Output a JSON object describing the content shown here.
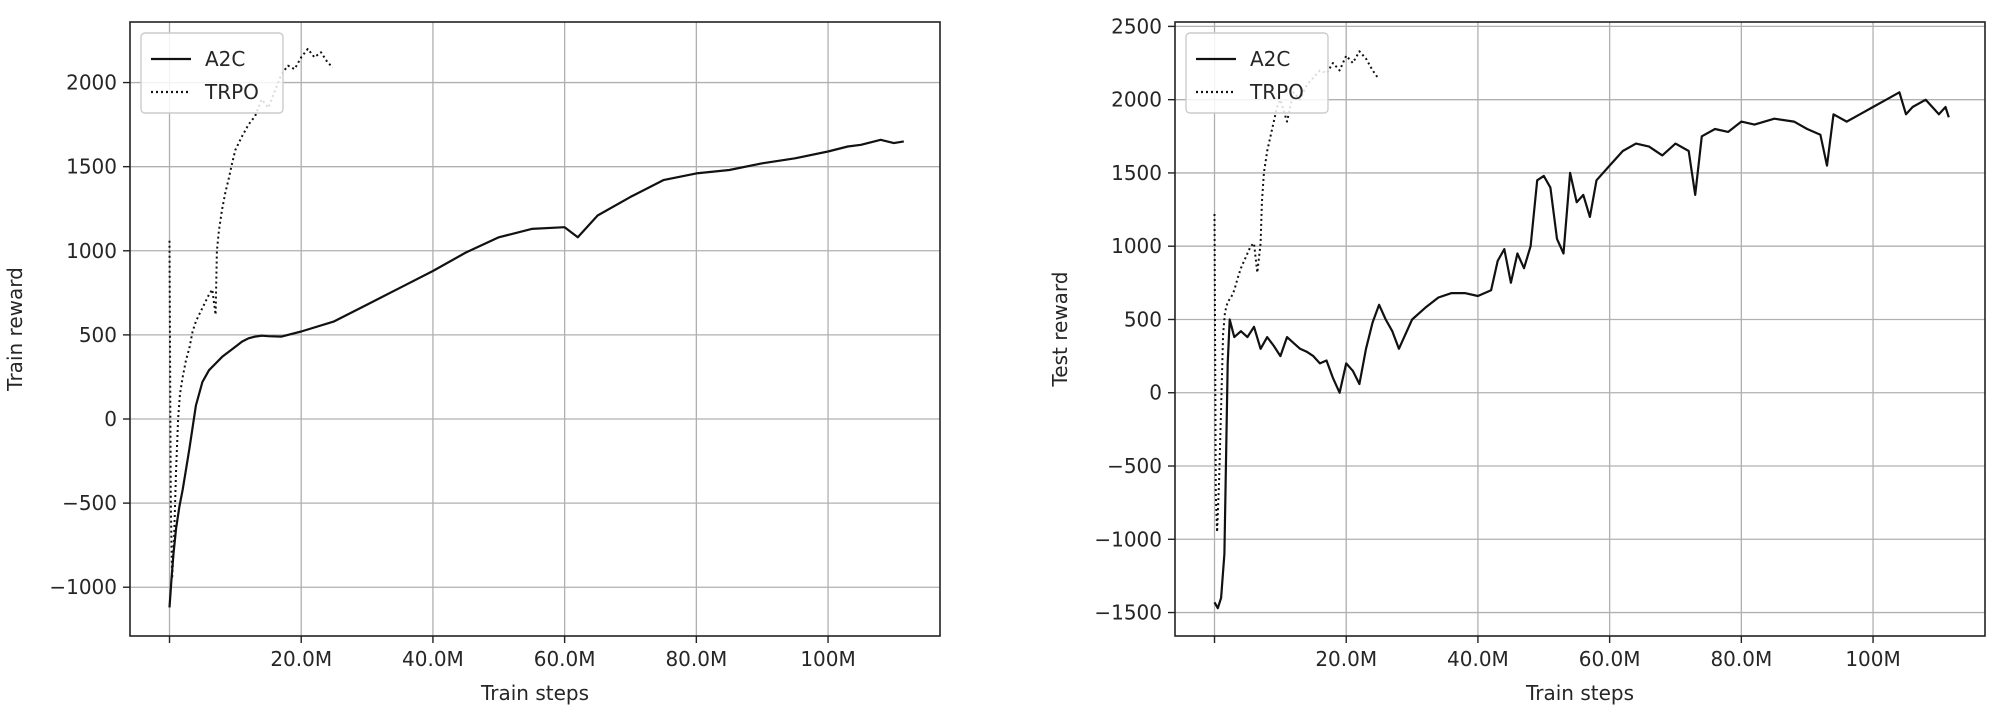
{
  "colors": {
    "line": "#111111",
    "grid": "#b0b0b0",
    "frame": "#222222",
    "legend_border": "#cccccc"
  },
  "chart_data": [
    {
      "type": "line",
      "xlabel": "Train steps",
      "ylabel": "Train reward",
      "xlim": [
        -6000000,
        117000000
      ],
      "ylim": [
        -1290,
        2360
      ],
      "xticks": [
        0,
        20000000,
        40000000,
        60000000,
        80000000,
        100000000
      ],
      "xtick_labels": [
        "",
        "20.0M",
        "40.0M",
        "60.0M",
        "80.0M",
        "100M"
      ],
      "yticks": [
        -1000,
        -500,
        0,
        500,
        1000,
        1500,
        2000
      ],
      "ytick_labels": [
        "−1000",
        "−500",
        "0",
        "500",
        "1000",
        "1500",
        "2000"
      ],
      "grid": true,
      "legend_position": "top-left",
      "series": [
        {
          "name": "A2C",
          "style": "solid",
          "x": [
            0,
            0.3,
            0.6,
            1.0,
            1.5,
            2.0,
            2.5,
            3.0,
            3.5,
            4.0,
            5.0,
            6.0,
            7.0,
            8.0,
            9.0,
            10.0,
            11.0,
            12.0,
            13.0,
            14.0,
            15.0,
            17.0,
            20.0,
            25.0,
            30.0,
            35.0,
            40.0,
            45.0,
            50.0,
            55.0,
            60.0,
            62.0,
            65.0,
            70.0,
            75.0,
            80.0,
            85.0,
            90.0,
            95.0,
            100.0,
            103.0,
            105.0,
            108.0,
            110.0,
            111.5
          ],
          "y": [
            -1120,
            -950,
            -800,
            -650,
            -520,
            -420,
            -300,
            -180,
            -50,
            80,
            220,
            290,
            330,
            370,
            400,
            430,
            460,
            480,
            490,
            495,
            492,
            490,
            520,
            580,
            680,
            780,
            880,
            990,
            1080,
            1130,
            1140,
            1080,
            1210,
            1320,
            1420,
            1460,
            1480,
            1520,
            1550,
            1590,
            1620,
            1630,
            1660,
            1640,
            1650
          ],
          "x_unit_scale": 1000000
        },
        {
          "name": "TRPO",
          "style": "dotted",
          "x": [
            0,
            0.2,
            0.4,
            0.7,
            1.0,
            1.3,
            1.6,
            2.0,
            2.5,
            3.0,
            3.5,
            4.0,
            4.5,
            5.0,
            5.5,
            6.0,
            6.5,
            7.0,
            7.2,
            7.5,
            8.0,
            8.5,
            9.0,
            9.5,
            10.0,
            11.0,
            12.0,
            13.0,
            14.0,
            15.0,
            16.0,
            17.0,
            18.0,
            19.0,
            20.0,
            21.0,
            22.0,
            23.0,
            24.0,
            24.8
          ],
          "y": [
            1060,
            -500,
            -950,
            -700,
            -300,
            0,
            150,
            250,
            350,
            420,
            520,
            580,
            620,
            660,
            700,
            740,
            770,
            620,
            1000,
            1120,
            1250,
            1350,
            1430,
            1520,
            1600,
            1680,
            1750,
            1800,
            1900,
            1850,
            1950,
            2050,
            2100,
            2080,
            2150,
            2200,
            2150,
            2180,
            2120,
            2090
          ],
          "x_unit_scale": 1000000
        }
      ]
    },
    {
      "type": "line",
      "xlabel": "Train steps",
      "ylabel": "Test reward",
      "xlim": [
        -6000000,
        117000000
      ],
      "ylim": [
        -1660,
        2530
      ],
      "xticks": [
        0,
        20000000,
        40000000,
        60000000,
        80000000,
        100000000
      ],
      "xtick_labels": [
        "",
        "20.0M",
        "40.0M",
        "60.0M",
        "80.0M",
        "100M"
      ],
      "yticks": [
        -1500,
        -1000,
        -500,
        0,
        500,
        1000,
        1500,
        2000,
        2500
      ],
      "ytick_labels": [
        "−1500",
        "−1000",
        "−500",
        "0",
        "500",
        "1000",
        "1500",
        "2000",
        "2500"
      ],
      "grid": true,
      "legend_position": "top-left",
      "series": [
        {
          "name": "A2C",
          "style": "solid",
          "x": [
            0,
            0.5,
            1.0,
            1.5,
            2.0,
            2.3,
            2.6,
            3.0,
            4.0,
            5.0,
            6.0,
            7.0,
            8.0,
            9.0,
            10.0,
            11.0,
            12.0,
            13.0,
            14.0,
            15.0,
            16.0,
            17.0,
            18.0,
            19.0,
            20.0,
            21.0,
            22.0,
            23.0,
            24.0,
            25.0,
            26.0,
            27.0,
            28.0,
            30.0,
            32.0,
            34.0,
            36.0,
            38.0,
            40.0,
            42.0,
            43.0,
            44.0,
            45.0,
            46.0,
            47.0,
            48.0,
            49.0,
            50.0,
            51.0,
            52.0,
            53.0,
            54.0,
            55.0,
            56.0,
            57.0,
            58.0,
            60.0,
            62.0,
            64.0,
            66.0,
            68.0,
            70.0,
            72.0,
            73.0,
            74.0,
            76.0,
            78.0,
            80.0,
            82.0,
            85.0,
            88.0,
            90.0,
            92.0,
            93.0,
            94.0,
            96.0,
            98.0,
            100.0,
            102.0,
            104.0,
            105.0,
            106.0,
            108.0,
            110.0,
            111.0,
            111.5
          ],
          "y": [
            -1430,
            -1470,
            -1400,
            -1100,
            200,
            500,
            450,
            380,
            420,
            380,
            450,
            300,
            380,
            320,
            250,
            380,
            340,
            300,
            280,
            250,
            200,
            220,
            100,
            0,
            200,
            150,
            60,
            300,
            480,
            600,
            500,
            420,
            300,
            500,
            580,
            650,
            680,
            680,
            660,
            700,
            900,
            980,
            750,
            950,
            850,
            1000,
            1450,
            1480,
            1400,
            1050,
            950,
            1500,
            1300,
            1350,
            1200,
            1450,
            1550,
            1650,
            1700,
            1680,
            1620,
            1700,
            1650,
            1350,
            1750,
            1800,
            1780,
            1850,
            1830,
            1870,
            1850,
            1800,
            1760,
            1550,
            1900,
            1850,
            1900,
            1950,
            2000,
            2050,
            1900,
            1950,
            2000,
            1900,
            1950,
            1880
          ],
          "x_unit_scale": 1000000
        },
        {
          "name": "TRPO",
          "style": "dotted",
          "x": [
            0,
            0.2,
            0.4,
            0.7,
            1.0,
            1.3,
            1.6,
            2.0,
            2.5,
            3.0,
            3.5,
            4.0,
            4.5,
            5.0,
            5.5,
            6.0,
            6.5,
            7.0,
            7.2,
            7.5,
            8.0,
            8.5,
            9.0,
            9.5,
            10.0,
            11.0,
            12.0,
            13.0,
            14.0,
            15.0,
            16.0,
            17.0,
            18.0,
            19.0,
            20.0,
            21.0,
            22.0,
            23.0,
            24.0,
            24.8
          ],
          "y": [
            1220,
            -700,
            -950,
            -600,
            -100,
            400,
            550,
            620,
            650,
            700,
            780,
            850,
            900,
            950,
            1000,
            1020,
            820,
            1020,
            1300,
            1500,
            1650,
            1750,
            1850,
            1950,
            2000,
            1850,
            2050,
            2000,
            2100,
            2150,
            2200,
            2180,
            2250,
            2200,
            2300,
            2250,
            2330,
            2280,
            2200,
            2150
          ],
          "x_unit_scale": 1000000
        }
      ]
    }
  ]
}
